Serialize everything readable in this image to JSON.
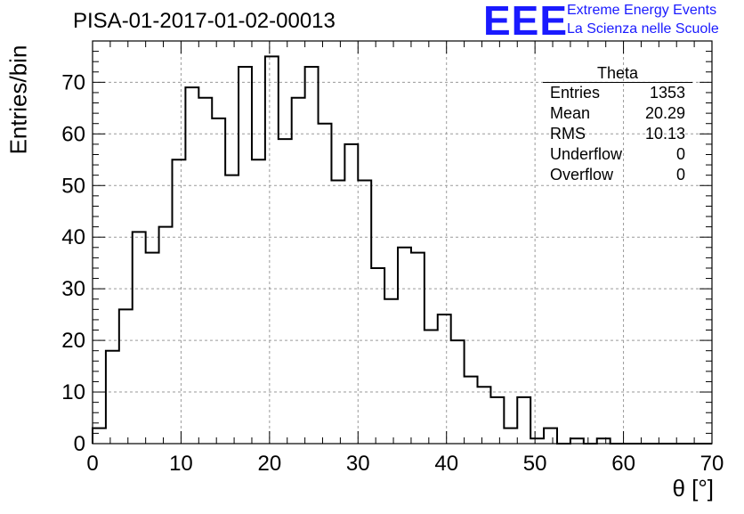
{
  "chart_data": {
    "type": "bar",
    "title": "PISA-01-2017-01-02-00013",
    "xlabel": "θ [°]",
    "ylabel": "Entries/bin",
    "xlim": [
      0,
      70
    ],
    "ylim": [
      0,
      78
    ],
    "grid": true,
    "bin_width": 1.5,
    "x_ticks": [
      "0",
      "10",
      "20",
      "30",
      "40",
      "50",
      "60",
      "70"
    ],
    "y_ticks": [
      "0",
      "10",
      "20",
      "30",
      "40",
      "50",
      "60",
      "70"
    ],
    "bin_edges_start": 0,
    "values": [
      3,
      18,
      26,
      41,
      37,
      42,
      55,
      69,
      67,
      63,
      52,
      73,
      55,
      75,
      59,
      67,
      73,
      62,
      51,
      58,
      51,
      34,
      28,
      38,
      37,
      22,
      25,
      20,
      13,
      11,
      9,
      3,
      9,
      1,
      3,
      0,
      1,
      0,
      1,
      0,
      0,
      0,
      0,
      0,
      0,
      0,
      0
    ]
  },
  "stats": {
    "name": "Theta",
    "rows": [
      {
        "label": "Entries",
        "value": "1353"
      },
      {
        "label": "Mean",
        "value": "20.29"
      },
      {
        "label": "RMS",
        "value": "10.13"
      },
      {
        "label": "Underflow",
        "value": "0"
      },
      {
        "label": "Overflow",
        "value": "0"
      }
    ]
  },
  "logo": {
    "mark": "EEE",
    "line1": "Extreme Energy Events",
    "line2": "La Scienza nelle Scuole",
    "color": "#1a1aff"
  }
}
